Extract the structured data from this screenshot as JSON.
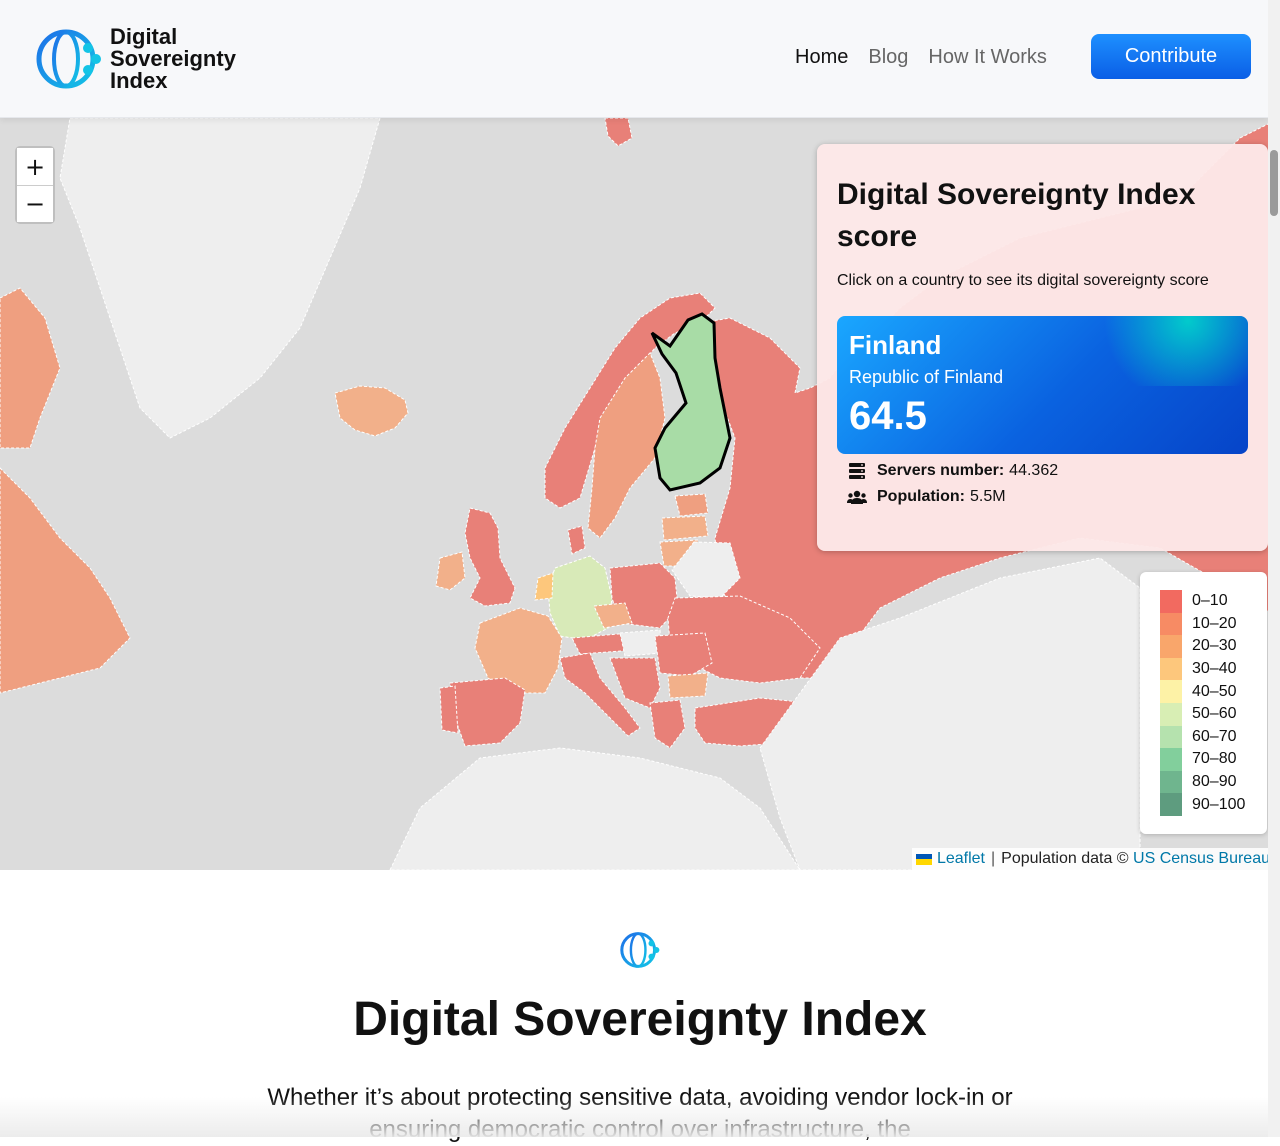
{
  "header": {
    "logo_text": "Digital Sovereignty Index",
    "logo_icon": "globe-network-icon",
    "nav": [
      {
        "label": "Home",
        "active": true
      },
      {
        "label": "Blog",
        "active": false
      },
      {
        "label": "How It Works",
        "active": false
      }
    ],
    "contribute_label": "Contribute"
  },
  "map": {
    "zoom_in_label": "+",
    "zoom_out_label": "−",
    "info": {
      "title": "Digital Sovereignty Index score",
      "subtitle": "Click on a country to see its digital sovereignty score",
      "country": {
        "name": "Finland",
        "official_name": "Republic of Finland",
        "score": "64.5",
        "servers_label": "Servers number:",
        "servers_value": "44.362",
        "population_label": "Population:",
        "population_value": "5.5M"
      }
    },
    "legend": [
      {
        "label": "0–10",
        "color": "#f26a60"
      },
      {
        "label": "10–20",
        "color": "#f78b64"
      },
      {
        "label": "20–30",
        "color": "#f9a66b"
      },
      {
        "label": "30–40",
        "color": "#fdc77c"
      },
      {
        "label": "40–50",
        "color": "#fdf2a6"
      },
      {
        "label": "50–60",
        "color": "#d8eeb4"
      },
      {
        "label": "60–70",
        "color": "#b5e2ae"
      },
      {
        "label": "70–80",
        "color": "#82cf9c"
      },
      {
        "label": "80–90",
        "color": "#6fb58e"
      },
      {
        "label": "90–100",
        "color": "#5e9c7f"
      }
    ],
    "attribution": {
      "leaflet": "Leaflet",
      "text": "Population data ©",
      "source": "US Census Bureau"
    },
    "colors": {
      "red": "#e88078",
      "orange": "#ef9f80",
      "light_orange": "#f2b08a",
      "green": "#a8dca6",
      "light_green": "#d8eab8",
      "no_data": "#eeeeee",
      "sea": "#dcdcdc"
    }
  },
  "content": {
    "title": "Digital Sovereignty Index",
    "intro": "Whether it’s about protecting sensitive data, avoiding vendor lock-in or ensuring democratic control over infrastructure, the"
  }
}
